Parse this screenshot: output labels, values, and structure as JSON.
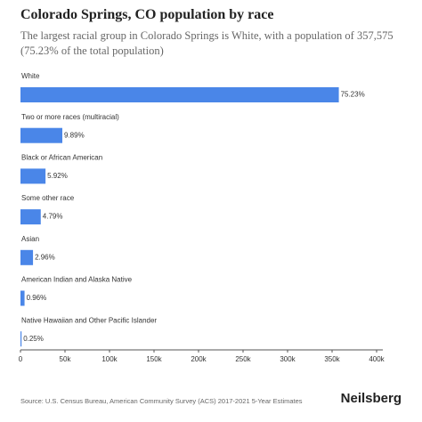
{
  "chart_data": {
    "type": "hbar",
    "title": "Colorado Springs, CO population by race",
    "subtitle": "The largest racial group in Colorado Springs is White, with a population of 357,575 (75.23% of the total population)",
    "categories": [
      "White",
      "Two or more races (multiracial)",
      "Black or African American",
      "Some other race",
      "Asian",
      "American Indian and Alaska Native",
      "Native Hawaiian and Other Pacific Islander"
    ],
    "values": [
      357575,
      47008,
      28138,
      22767,
      14069,
      4563,
      1188
    ],
    "value_labels": [
      "75.23%",
      "9.89%",
      "5.92%",
      "4.79%",
      "2.96%",
      "0.96%",
      "0.25%"
    ],
    "color": "#4a86e8",
    "xlim": [
      0,
      407000
    ],
    "xticks": [
      0,
      {
        "value": 50000,
        "label": "50k"
      },
      {
        "value": 100000,
        "label": "100k"
      },
      {
        "value": 150000,
        "label": "150k"
      },
      {
        "value": 200000,
        "label": "200k"
      },
      {
        "value": 250000,
        "label": "250k"
      },
      {
        "value": 300000,
        "label": "300k"
      },
      {
        "value": 350000,
        "label": "350k"
      },
      {
        "value": 400000,
        "label": "400k"
      }
    ],
    "grid": false,
    "source": "Source: U.S. Census Bureau, American Community Survey (ACS) 2017-2021 5-Year Estimates",
    "brand": "Neilsberg"
  }
}
